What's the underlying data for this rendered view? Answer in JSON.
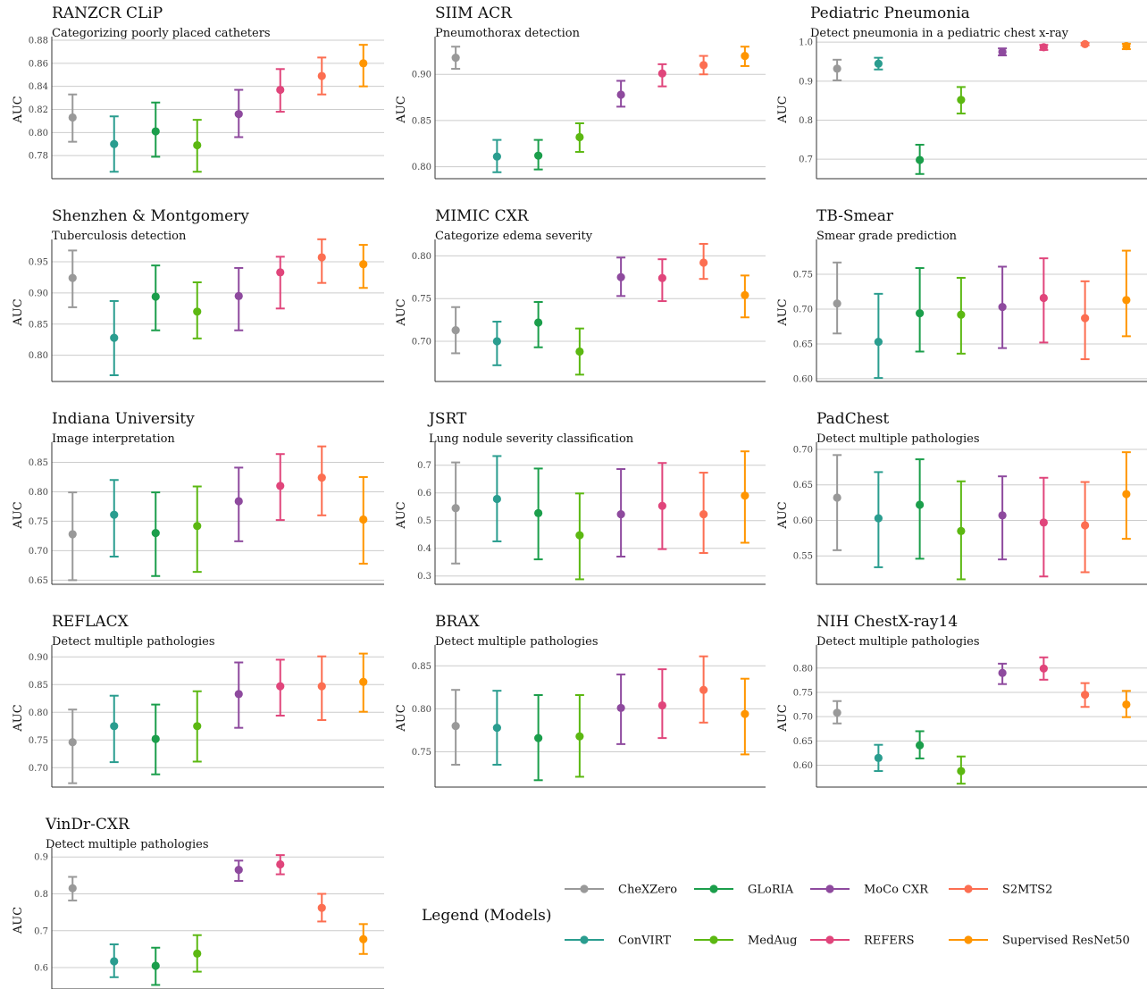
{
  "legend": {
    "title": "Legend (Models)",
    "models": [
      {
        "name": "CheXZero",
        "color": "#999999"
      },
      {
        "name": "GLoRIA",
        "color": "#1b9e4b"
      },
      {
        "name": "MoCo CXR",
        "color": "#8e4a9e"
      },
      {
        "name": "S2MTS2",
        "color": "#fc6e51"
      },
      {
        "name": "ConVIRT",
        "color": "#2a9d8f"
      },
      {
        "name": "MedAug",
        "color": "#5cb812"
      },
      {
        "name": "REFERS",
        "color": "#e0457b"
      },
      {
        "name": "Supervised ResNet50",
        "color": "#ff9500"
      }
    ]
  },
  "chart_data": [
    {
      "type": "scatter",
      "title": "RANZCR CLiP",
      "subtitle": "Categorizing poorly placed catheters",
      "ylabel": "AUC",
      "ylim": [
        0.76,
        0.88
      ],
      "yticks": [
        0.78,
        0.8,
        0.82,
        0.84,
        0.86,
        0.88
      ],
      "tick_labels": [
        "0.78",
        "0.80",
        "0.82",
        "0.84",
        "0.86",
        "0.88"
      ],
      "grid": true,
      "series": [
        {
          "name": "CheXZero",
          "value": 0.813,
          "low": 0.792,
          "high": 0.833
        },
        {
          "name": "ConVIRT",
          "value": 0.79,
          "low": 0.766,
          "high": 0.814
        },
        {
          "name": "GLoRIA",
          "value": 0.801,
          "low": 0.779,
          "high": 0.826
        },
        {
          "name": "MedAug",
          "value": 0.789,
          "low": 0.766,
          "high": 0.811
        },
        {
          "name": "MoCo CXR",
          "value": 0.816,
          "low": 0.796,
          "high": 0.837
        },
        {
          "name": "REFERS",
          "value": 0.837,
          "low": 0.818,
          "high": 0.855
        },
        {
          "name": "S2MTS2",
          "value": 0.849,
          "low": 0.833,
          "high": 0.865
        },
        {
          "name": "Supervised ResNet50",
          "value": 0.86,
          "low": 0.84,
          "high": 0.876
        }
      ]
    },
    {
      "type": "scatter",
      "title": "SIIM ACR",
      "subtitle": "Pneumothorax detection",
      "ylabel": "AUC",
      "ylim": [
        0.787,
        0.937
      ],
      "yticks": [
        0.8,
        0.85,
        0.9
      ],
      "tick_labels": [
        "0.80",
        "0.85",
        "0.90"
      ],
      "grid": true,
      "series": [
        {
          "name": "CheXZero",
          "value": 0.918,
          "low": 0.906,
          "high": 0.93
        },
        {
          "name": "ConVIRT",
          "value": 0.811,
          "low": 0.794,
          "high": 0.829
        },
        {
          "name": "GLoRIA",
          "value": 0.812,
          "low": 0.797,
          "high": 0.829
        },
        {
          "name": "MedAug",
          "value": 0.832,
          "low": 0.816,
          "high": 0.847
        },
        {
          "name": "MoCo CXR",
          "value": 0.878,
          "low": 0.865,
          "high": 0.893
        },
        {
          "name": "REFERS",
          "value": 0.901,
          "low": 0.887,
          "high": 0.911
        },
        {
          "name": "S2MTS2",
          "value": 0.91,
          "low": 0.9,
          "high": 0.92
        },
        {
          "name": "Supervised ResNet50",
          "value": 0.92,
          "low": 0.909,
          "high": 0.93
        }
      ]
    },
    {
      "type": "scatter",
      "title": "Pediatric Pneumonia",
      "subtitle": "Detect pneumonia in a pediatric chest x-ray",
      "ylabel": "AUC",
      "ylim": [
        0.65,
        1.005
      ],
      "yticks": [
        0.7,
        0.8,
        0.9,
        1.0
      ],
      "tick_labels": [
        "0.7",
        "0.8",
        "0.9",
        "1.0"
      ],
      "grid": true,
      "series": [
        {
          "name": "CheXZero",
          "value": 0.932,
          "low": 0.902,
          "high": 0.955
        },
        {
          "name": "ConVIRT",
          "value": 0.945,
          "low": 0.93,
          "high": 0.96
        },
        {
          "name": "GLoRIA",
          "value": 0.698,
          "low": 0.662,
          "high": 0.737
        },
        {
          "name": "MedAug",
          "value": 0.852,
          "low": 0.817,
          "high": 0.885
        },
        {
          "name": "MoCo CXR",
          "value": 0.975,
          "low": 0.966,
          "high": 0.984
        },
        {
          "name": "REFERS",
          "value": 0.987,
          "low": 0.98,
          "high": 0.993
        },
        {
          "name": "S2MTS2",
          "value": 0.995,
          "low": 0.992,
          "high": 0.998
        },
        {
          "name": "Supervised ResNet50",
          "value": 0.99,
          "low": 0.982,
          "high": 0.996
        }
      ]
    },
    {
      "type": "scatter",
      "title": "Shenzhen & Montgomery",
      "subtitle": "Tuberculosis detection",
      "ylabel": "AUC",
      "ylim": [
        0.758,
        0.98
      ],
      "yticks": [
        0.8,
        0.85,
        0.9,
        0.95
      ],
      "tick_labels": [
        "0.80",
        "0.85",
        "0.90",
        "0.95"
      ],
      "grid": true,
      "series": [
        {
          "name": "CheXZero",
          "value": 0.924,
          "low": 0.877,
          "high": 0.968
        },
        {
          "name": "ConVIRT",
          "value": 0.828,
          "low": 0.768,
          "high": 0.887
        },
        {
          "name": "GLoRIA",
          "value": 0.894,
          "low": 0.84,
          "high": 0.944
        },
        {
          "name": "MedAug",
          "value": 0.87,
          "low": 0.827,
          "high": 0.917
        },
        {
          "name": "MoCo CXR",
          "value": 0.895,
          "low": 0.84,
          "high": 0.94
        },
        {
          "name": "REFERS",
          "value": 0.933,
          "low": 0.875,
          "high": 0.958
        },
        {
          "name": "S2MTS2",
          "value": 0.957,
          "low": 0.916,
          "high": 0.986
        },
        {
          "name": "Supervised ResNet50",
          "value": 0.946,
          "low": 0.908,
          "high": 0.977
        }
      ]
    },
    {
      "type": "scatter",
      "title": "MIMIC CXR",
      "subtitle": "Categorize edema severity",
      "ylabel": "AUC",
      "ylim": [
        0.653,
        0.815
      ],
      "yticks": [
        0.7,
        0.75,
        0.8
      ],
      "tick_labels": [
        "0.70",
        "0.75",
        "0.80"
      ],
      "grid": true,
      "series": [
        {
          "name": "CheXZero",
          "value": 0.713,
          "low": 0.686,
          "high": 0.74
        },
        {
          "name": "ConVIRT",
          "value": 0.7,
          "low": 0.672,
          "high": 0.723
        },
        {
          "name": "GLoRIA",
          "value": 0.722,
          "low": 0.693,
          "high": 0.746
        },
        {
          "name": "MedAug",
          "value": 0.688,
          "low": 0.661,
          "high": 0.715
        },
        {
          "name": "MoCo CXR",
          "value": 0.775,
          "low": 0.753,
          "high": 0.798
        },
        {
          "name": "REFERS",
          "value": 0.774,
          "low": 0.747,
          "high": 0.796
        },
        {
          "name": "S2MTS2",
          "value": 0.792,
          "low": 0.773,
          "high": 0.814
        },
        {
          "name": "Supervised ResNet50",
          "value": 0.754,
          "low": 0.728,
          "high": 0.777
        }
      ]
    },
    {
      "type": "scatter",
      "title": "TB-Smear",
      "subtitle": "Smear grade prediction",
      "ylabel": "AUC",
      "ylim": [
        0.596,
        0.795
      ],
      "yticks": [
        0.6,
        0.65,
        0.7,
        0.75
      ],
      "tick_labels": [
        "0.60",
        "0.65",
        "0.70",
        "0.75"
      ],
      "grid": true,
      "series": [
        {
          "name": "CheXZero",
          "value": 0.708,
          "low": 0.665,
          "high": 0.767
        },
        {
          "name": "ConVIRT",
          "value": 0.653,
          "low": 0.601,
          "high": 0.722
        },
        {
          "name": "GLoRIA",
          "value": 0.694,
          "low": 0.639,
          "high": 0.759
        },
        {
          "name": "MedAug",
          "value": 0.692,
          "low": 0.636,
          "high": 0.745
        },
        {
          "name": "MoCo CXR",
          "value": 0.703,
          "low": 0.644,
          "high": 0.761
        },
        {
          "name": "REFERS",
          "value": 0.716,
          "low": 0.652,
          "high": 0.773
        },
        {
          "name": "S2MTS2",
          "value": 0.687,
          "low": 0.628,
          "high": 0.74
        },
        {
          "name": "Supervised ResNet50",
          "value": 0.713,
          "low": 0.661,
          "high": 0.784
        }
      ]
    },
    {
      "type": "scatter",
      "title": "Indiana University",
      "subtitle": "Image interpretation",
      "ylabel": "AUC",
      "ylim": [
        0.643,
        0.878
      ],
      "yticks": [
        0.65,
        0.7,
        0.75,
        0.8,
        0.85
      ],
      "tick_labels": [
        "0.65",
        "0.70",
        "0.75",
        "0.80",
        "0.85"
      ],
      "grid": true,
      "series": [
        {
          "name": "CheXZero",
          "value": 0.728,
          "low": 0.65,
          "high": 0.799
        },
        {
          "name": "ConVIRT",
          "value": 0.761,
          "low": 0.69,
          "high": 0.82
        },
        {
          "name": "GLoRIA",
          "value": 0.73,
          "low": 0.657,
          "high": 0.799
        },
        {
          "name": "MedAug",
          "value": 0.742,
          "low": 0.664,
          "high": 0.809
        },
        {
          "name": "MoCo CXR",
          "value": 0.784,
          "low": 0.716,
          "high": 0.841
        },
        {
          "name": "REFERS",
          "value": 0.81,
          "low": 0.752,
          "high": 0.864
        },
        {
          "name": "S2MTS2",
          "value": 0.824,
          "low": 0.76,
          "high": 0.877
        },
        {
          "name": "Supervised ResNet50",
          "value": 0.753,
          "low": 0.678,
          "high": 0.825
        }
      ]
    },
    {
      "type": "scatter",
      "title": "JSRT",
      "subtitle": "Lung nodule severity classification",
      "ylabel": "AUC",
      "ylim": [
        0.27,
        0.77
      ],
      "yticks": [
        0.3,
        0.4,
        0.5,
        0.6,
        0.7
      ],
      "tick_labels": [
        "0.3",
        "0.4",
        "0.5",
        "0.6",
        "0.7"
      ],
      "grid": true,
      "series": [
        {
          "name": "CheXZero",
          "value": 0.545,
          "low": 0.345,
          "high": 0.71
        },
        {
          "name": "ConVIRT",
          "value": 0.578,
          "low": 0.425,
          "high": 0.733
        },
        {
          "name": "GLoRIA",
          "value": 0.527,
          "low": 0.36,
          "high": 0.688
        },
        {
          "name": "MedAug",
          "value": 0.447,
          "low": 0.288,
          "high": 0.598
        },
        {
          "name": "MoCo CXR",
          "value": 0.523,
          "low": 0.37,
          "high": 0.686
        },
        {
          "name": "REFERS",
          "value": 0.553,
          "low": 0.397,
          "high": 0.708
        },
        {
          "name": "S2MTS2",
          "value": 0.523,
          "low": 0.383,
          "high": 0.673
        },
        {
          "name": "Supervised ResNet50",
          "value": 0.59,
          "low": 0.42,
          "high": 0.75
        }
      ]
    },
    {
      "type": "scatter",
      "title": "PadChest",
      "subtitle": "Detect multiple pathologies",
      "ylabel": "AUC",
      "ylim": [
        0.51,
        0.705
      ],
      "yticks": [
        0.55,
        0.6,
        0.65,
        0.7
      ],
      "tick_labels": [
        "0.55",
        "0.60",
        "0.65",
        "0.70"
      ],
      "grid": true,
      "series": [
        {
          "name": "CheXZero",
          "value": 0.632,
          "low": 0.558,
          "high": 0.692
        },
        {
          "name": "ConVIRT",
          "value": 0.603,
          "low": 0.534,
          "high": 0.668
        },
        {
          "name": "GLoRIA",
          "value": 0.622,
          "low": 0.546,
          "high": 0.686
        },
        {
          "name": "MedAug",
          "value": 0.585,
          "low": 0.517,
          "high": 0.655
        },
        {
          "name": "MoCo CXR",
          "value": 0.607,
          "low": 0.545,
          "high": 0.662
        },
        {
          "name": "REFERS",
          "value": 0.597,
          "low": 0.521,
          "high": 0.66
        },
        {
          "name": "S2MTS2",
          "value": 0.593,
          "low": 0.527,
          "high": 0.654
        },
        {
          "name": "Supervised ResNet50",
          "value": 0.637,
          "low": 0.574,
          "high": 0.696
        }
      ]
    },
    {
      "type": "scatter",
      "title": "REFLACX",
      "subtitle": "Detect multiple pathologies",
      "ylabel": "AUC",
      "ylim": [
        0.665,
        0.915
      ],
      "yticks": [
        0.7,
        0.75,
        0.8,
        0.85,
        0.9
      ],
      "tick_labels": [
        "0.70",
        "0.75",
        "0.80",
        "0.85",
        "0.90"
      ],
      "grid": true,
      "series": [
        {
          "name": "CheXZero",
          "value": 0.746,
          "low": 0.672,
          "high": 0.805
        },
        {
          "name": "ConVIRT",
          "value": 0.775,
          "low": 0.71,
          "high": 0.83
        },
        {
          "name": "GLoRIA",
          "value": 0.752,
          "low": 0.688,
          "high": 0.814
        },
        {
          "name": "MedAug",
          "value": 0.775,
          "low": 0.711,
          "high": 0.838
        },
        {
          "name": "MoCo CXR",
          "value": 0.833,
          "low": 0.772,
          "high": 0.89
        },
        {
          "name": "REFERS",
          "value": 0.847,
          "low": 0.794,
          "high": 0.895
        },
        {
          "name": "S2MTS2",
          "value": 0.847,
          "low": 0.786,
          "high": 0.901
        },
        {
          "name": "Supervised ResNet50",
          "value": 0.855,
          "low": 0.801,
          "high": 0.906
        }
      ]
    },
    {
      "type": "scatter",
      "title": "BRAX",
      "subtitle": "Detect multiple pathologies",
      "ylabel": "AUC",
      "ylim": [
        0.709,
        0.87
      ],
      "yticks": [
        0.75,
        0.8,
        0.85
      ],
      "tick_labels": [
        "0.75",
        "0.80",
        "0.85"
      ],
      "grid": true,
      "series": [
        {
          "name": "CheXZero",
          "value": 0.78,
          "low": 0.735,
          "high": 0.822
        },
        {
          "name": "ConVIRT",
          "value": 0.778,
          "low": 0.735,
          "high": 0.821
        },
        {
          "name": "GLoRIA",
          "value": 0.766,
          "low": 0.717,
          "high": 0.816
        },
        {
          "name": "MedAug",
          "value": 0.768,
          "low": 0.721,
          "high": 0.816
        },
        {
          "name": "MoCo CXR",
          "value": 0.801,
          "low": 0.759,
          "high": 0.84
        },
        {
          "name": "REFERS",
          "value": 0.804,
          "low": 0.766,
          "high": 0.846
        },
        {
          "name": "S2MTS2",
          "value": 0.822,
          "low": 0.784,
          "high": 0.861
        },
        {
          "name": "Supervised ResNet50",
          "value": 0.794,
          "low": 0.747,
          "high": 0.835
        }
      ]
    },
    {
      "type": "scatter",
      "title": "NIH ChestX-ray14",
      "subtitle": "Detect multiple pathologies",
      "ylabel": "AUC",
      "ylim": [
        0.555,
        0.84
      ],
      "yticks": [
        0.6,
        0.65,
        0.7,
        0.75,
        0.8
      ],
      "tick_labels": [
        "0.60",
        "0.65",
        "0.70",
        "0.75",
        "0.80"
      ],
      "grid": true,
      "series": [
        {
          "name": "CheXZero",
          "value": 0.708,
          "low": 0.686,
          "high": 0.732
        },
        {
          "name": "ConVIRT",
          "value": 0.615,
          "low": 0.588,
          "high": 0.642
        },
        {
          "name": "GLoRIA",
          "value": 0.641,
          "low": 0.614,
          "high": 0.67
        },
        {
          "name": "MedAug",
          "value": 0.588,
          "low": 0.562,
          "high": 0.618
        },
        {
          "name": "MoCo CXR",
          "value": 0.79,
          "low": 0.767,
          "high": 0.809
        },
        {
          "name": "REFERS",
          "value": 0.799,
          "low": 0.776,
          "high": 0.822
        },
        {
          "name": "S2MTS2",
          "value": 0.745,
          "low": 0.72,
          "high": 0.769
        },
        {
          "name": "Supervised ResNet50",
          "value": 0.725,
          "low": 0.699,
          "high": 0.753
        }
      ]
    },
    {
      "type": "scatter",
      "title": "VinDr-CXR",
      "subtitle": "Detect multiple pathologies",
      "ylabel": "AUC",
      "ylim": [
        0.542,
        0.915
      ],
      "yticks": [
        0.6,
        0.7,
        0.8,
        0.9
      ],
      "tick_labels": [
        "0.6",
        "0.7",
        "0.8",
        "0.9"
      ],
      "grid": true,
      "series": [
        {
          "name": "CheXZero",
          "value": 0.815,
          "low": 0.782,
          "high": 0.846
        },
        {
          "name": "ConVIRT",
          "value": 0.617,
          "low": 0.574,
          "high": 0.663
        },
        {
          "name": "GLoRIA",
          "value": 0.605,
          "low": 0.553,
          "high": 0.654
        },
        {
          "name": "MedAug",
          "value": 0.638,
          "low": 0.589,
          "high": 0.688
        },
        {
          "name": "MoCo CXR",
          "value": 0.865,
          "low": 0.835,
          "high": 0.89
        },
        {
          "name": "REFERS",
          "value": 0.88,
          "low": 0.853,
          "high": 0.905
        },
        {
          "name": "S2MTS2",
          "value": 0.762,
          "low": 0.725,
          "high": 0.8
        },
        {
          "name": "Supervised ResNet50",
          "value": 0.677,
          "low": 0.637,
          "high": 0.718
        }
      ]
    }
  ]
}
